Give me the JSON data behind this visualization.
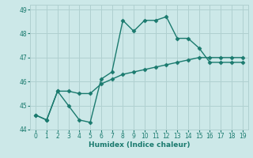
{
  "line1_x": [
    0,
    1,
    2,
    3,
    4,
    5,
    6,
    7,
    8,
    9,
    10,
    11,
    12,
    13,
    14,
    15,
    16,
    17,
    18,
    19
  ],
  "line1_y": [
    44.6,
    44.4,
    45.6,
    45.0,
    44.4,
    44.3,
    46.1,
    46.4,
    48.55,
    48.1,
    48.55,
    48.55,
    48.7,
    47.8,
    47.8,
    47.4,
    46.8,
    46.8,
    46.8,
    46.8
  ],
  "line2_x": [
    0,
    1,
    2,
    3,
    4,
    5,
    6,
    7,
    8,
    9,
    10,
    11,
    12,
    13,
    14,
    15,
    16,
    17,
    18,
    19
  ],
  "line2_y": [
    44.6,
    44.4,
    45.6,
    45.6,
    45.5,
    45.5,
    45.9,
    46.1,
    46.3,
    46.4,
    46.5,
    46.6,
    46.7,
    46.8,
    46.9,
    47.0,
    47.0,
    47.0,
    47.0,
    47.0
  ],
  "line_color": "#1a7a6e",
  "bg_color": "#cce8e8",
  "grid_color": "#b0d0d0",
  "xlabel": "Humidex (Indice chaleur)",
  "ylim": [
    44.0,
    49.2
  ],
  "xlim": [
    -0.5,
    19.5
  ],
  "yticks": [
    44,
    45,
    46,
    47,
    48,
    49
  ],
  "xticks": [
    0,
    1,
    2,
    3,
    4,
    5,
    6,
    7,
    8,
    9,
    10,
    11,
    12,
    13,
    14,
    15,
    16,
    17,
    18,
    19
  ],
  "markersize": 2.5,
  "linewidth": 1.0
}
